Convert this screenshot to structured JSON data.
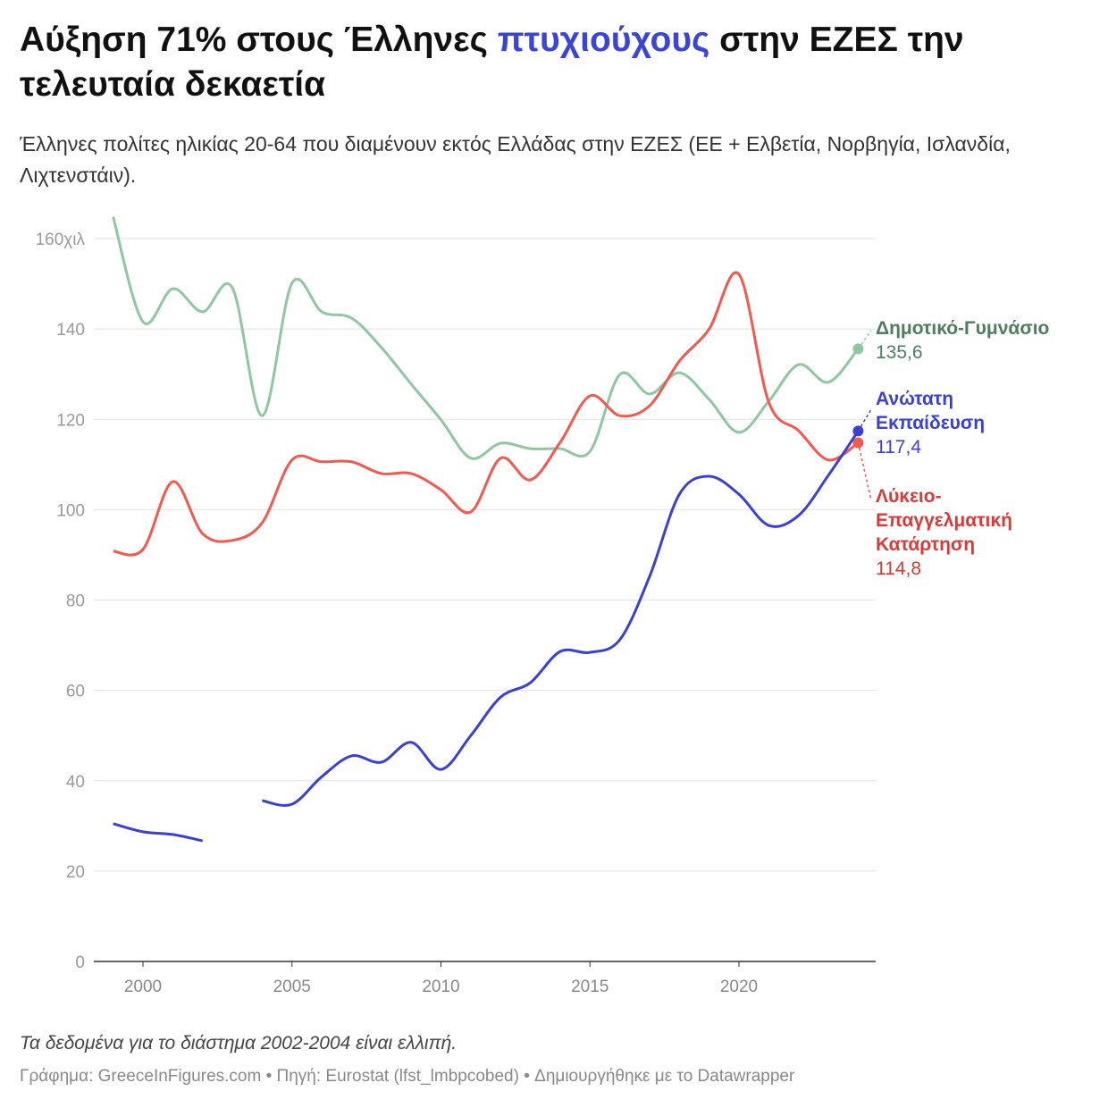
{
  "title": {
    "before": "Αύξηση 71% στους Έλληνες ",
    "highlight": "πτυχιούχους",
    "after": " στην ΕΖΕΣ την τελευταία δεκαετία"
  },
  "subtitle": "Έλληνες πολίτες ηλικίας 20-64 που διαμένουν εκτός Ελλάδας στην ΕΖΕΣ (ΕΕ + Ελβετία, Νορβηγία, Ισλανδία, Λιχτενστάιν).",
  "note": "Τα δεδομένα για το διάστημα 2002-2004 είναι ελλιπή.",
  "footer": "Γράφημα: GreeceInFigures.com • Πηγή: Eurostat (lfst_lmbpcobed) • Δημιουργήθηκε με το Datawrapper",
  "chart_data": {
    "type": "line",
    "x": [
      1999,
      2000,
      2001,
      2002,
      2003,
      2004,
      2005,
      2006,
      2007,
      2008,
      2009,
      2010,
      2011,
      2012,
      2013,
      2014,
      2015,
      2016,
      2017,
      2018,
      2019,
      2020,
      2021,
      2022,
      2023,
      2024
    ],
    "ylim": [
      0,
      160
    ],
    "yticks": [
      0,
      20,
      40,
      60,
      80,
      100,
      120,
      140,
      160
    ],
    "ytick_labels": [
      "0",
      "20",
      "40",
      "60",
      "80",
      "100",
      "120",
      "140",
      "160χιλ"
    ],
    "xticks": [
      2000,
      2005,
      2010,
      2015,
      2020
    ],
    "xtick_labels": [
      "2000",
      "2005",
      "2010",
      "2015",
      "2020"
    ],
    "grid": true,
    "series": [
      {
        "name": "Δημοτικό-Γυμνάσιο",
        "end_label": "135,6",
        "color": "#8fc7a0",
        "label_color": "#4b7f5c",
        "values": [
          164.8,
          141.6,
          148.9,
          143.8,
          149.1,
          120.8,
          150.1,
          143.8,
          142.4,
          135.9,
          127.8,
          119.9,
          111.4,
          114.7,
          113.5,
          113.5,
          112.9,
          129.9,
          125.6,
          130.3,
          124.4,
          117.1,
          124.0,
          132.1,
          128.2,
          135.6
        ]
      },
      {
        "name": "Ανώτατη Εκπαίδευση",
        "end_label": "117,4",
        "color": "#3a3fd6",
        "label_color": "#3a3fd6",
        "values": [
          30.5,
          28.7,
          28.1,
          26.7,
          null,
          35.6,
          34.8,
          40.9,
          45.5,
          44.1,
          48.5,
          42.5,
          50.0,
          58.5,
          61.7,
          68.6,
          68.4,
          71.2,
          85.2,
          103.4,
          107.4,
          103.4,
          96.5,
          98.7,
          107.6,
          117.4
        ]
      },
      {
        "name": "Λύκειο-Επαγγελματική Κατάρτηση",
        "end_label": "114,8",
        "color": "#f5584f",
        "label_color": "#d93a36",
        "values": [
          90.8,
          91.2,
          106.2,
          94.7,
          93.2,
          97.1,
          111.0,
          110.6,
          110.6,
          108.0,
          108.0,
          104.4,
          99.5,
          111.4,
          106.6,
          114.9,
          125.2,
          120.8,
          123.0,
          132.9,
          140.0,
          152.1,
          123.8,
          117.5,
          111.0,
          114.8
        ]
      }
    ]
  }
}
